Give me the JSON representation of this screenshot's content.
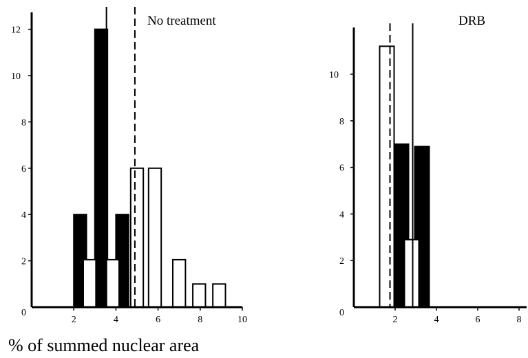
{
  "chart_data": [
    {
      "type": "bar",
      "title": "No treatment",
      "xlim": [
        0,
        10
      ],
      "ylim": [
        0,
        13
      ],
      "xticks": [
        2,
        4,
        6,
        8,
        10
      ],
      "yticks": [
        0,
        2,
        4,
        6,
        8,
        10,
        12
      ],
      "bin_width": 0.6,
      "series": [
        {
          "name": "",
          "fill": "#000000",
          "bars": [
            {
              "x": 2.3,
              "value": 4
            },
            {
              "x": 3.3,
              "value": 12
            },
            {
              "x": 4.3,
              "value": 4
            }
          ]
        },
        {
          "name": "",
          "fill": "#ffffff",
          "bars": [
            {
              "x": 2.75,
              "value": 2.05
            },
            {
              "x": 3.85,
              "value": 2.05
            },
            {
              "x": 5.0,
              "value": 6
            },
            {
              "x": 5.85,
              "value": 6
            },
            {
              "x": 7.0,
              "value": 2.05
            },
            {
              "x": 7.95,
              "value": 1
            },
            {
              "x": 8.9,
              "value": 1
            }
          ]
        }
      ],
      "reference_lines": [
        {
          "x": 3.55,
          "style": "solid"
        },
        {
          "x": 4.9,
          "style": "dashed"
        }
      ]
    },
    {
      "type": "bar",
      "title": "DRB",
      "xlim": [
        0,
        8.5
      ],
      "ylim": [
        0,
        12
      ],
      "xticks": [
        2,
        4,
        6,
        8
      ],
      "yticks": [
        0,
        2,
        4,
        6,
        8,
        10
      ],
      "bin_width": 0.7,
      "series": [
        {
          "name": "",
          "fill": "#000000",
          "bars": [
            {
              "x": 2.3,
              "value": 7
            },
            {
              "x": 3.3,
              "value": 6.9
            }
          ]
        },
        {
          "name": "",
          "fill": "#ffffff",
          "bars": [
            {
              "x": 1.6,
              "value": 11.2
            },
            {
              "x": 2.8,
              "value": 2.9
            }
          ]
        }
      ],
      "reference_lines": [
        {
          "x": 1.75,
          "style": "dashed"
        },
        {
          "x": 2.85,
          "style": "solid"
        }
      ]
    }
  ],
  "figure": {
    "xlabel": "% of summed nuclear area"
  }
}
